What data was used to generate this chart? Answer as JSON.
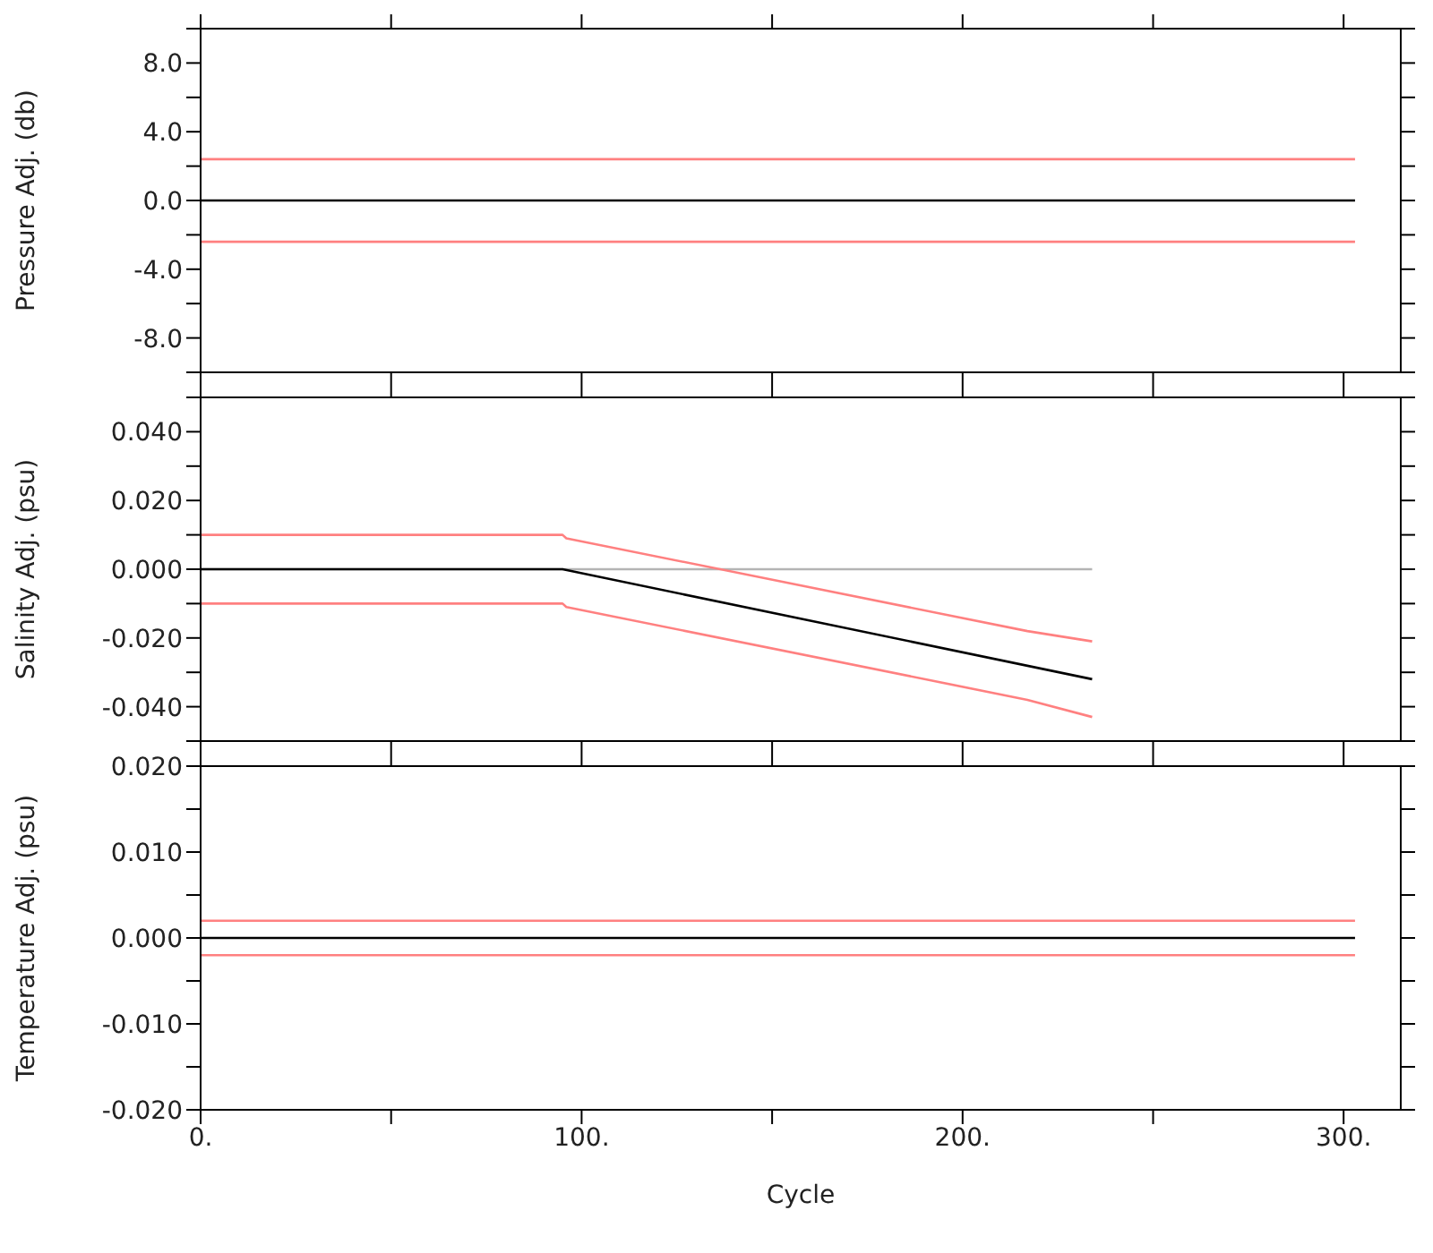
{
  "chart_data": [
    {
      "type": "line",
      "ylabel": "Pressure Adj. (db)",
      "xlim": [
        0,
        315
      ],
      "xticks": [
        0,
        {
          "value": 50,
          "label": null
        },
        {
          "value": 100,
          "label": null
        },
        {
          "value": 150,
          "label": null
        },
        {
          "value": 200,
          "label": null
        },
        {
          "value": 250,
          "label": null
        },
        {
          "value": 300,
          "label": null
        }
      ],
      "ylim": [
        -10,
        10
      ],
      "yticks": [
        {
          "value": -10,
          "label": null
        },
        {
          "value": -8,
          "label": "-8.0"
        },
        {
          "value": -6,
          "label": null
        },
        {
          "value": -4,
          "label": "-4.0"
        },
        {
          "value": -2,
          "label": null
        },
        {
          "value": 0,
          "label": "0.0"
        },
        {
          "value": 2,
          "label": null
        },
        {
          "value": 4,
          "label": "4.0"
        },
        {
          "value": 6,
          "label": null
        },
        {
          "value": 8,
          "label": "8.0"
        },
        {
          "value": 10,
          "label": null
        }
      ],
      "tick_labels": "y",
      "grid": false,
      "legend": false,
      "marker": "none",
      "series": [
        {
          "color": "#ff8080",
          "x": [
            0,
            303
          ],
          "values": [
            2.4,
            2.4
          ]
        },
        {
          "color": "#ff8080",
          "x": [
            0,
            303
          ],
          "values": [
            -2.4,
            -2.4
          ]
        },
        {
          "color": "#000000",
          "x": [
            0,
            303
          ],
          "values": [
            0,
            0
          ]
        }
      ]
    },
    {
      "type": "line",
      "ylabel": "Salinity Adj. (psu)",
      "xlim": [
        0,
        315
      ],
      "xticks": [
        0,
        {
          "value": 50,
          "label": null
        },
        {
          "value": 100,
          "label": null
        },
        {
          "value": 150,
          "label": null
        },
        {
          "value": 200,
          "label": null
        },
        {
          "value": 250,
          "label": null
        },
        {
          "value": 300,
          "label": null
        }
      ],
      "ylim": [
        -0.05,
        0.05
      ],
      "yticks": [
        {
          "value": -0.05,
          "label": null
        },
        {
          "value": -0.04,
          "label": "-0.040"
        },
        {
          "value": -0.03,
          "label": null
        },
        {
          "value": -0.02,
          "label": "-0.020"
        },
        {
          "value": -0.01,
          "label": null
        },
        {
          "value": 0,
          "label": "0.000"
        },
        {
          "value": 0.01,
          "label": null
        },
        {
          "value": 0.02,
          "label": "0.020"
        },
        {
          "value": 0.03,
          "label": null
        },
        {
          "value": 0.04,
          "label": "0.040"
        },
        {
          "value": 0.05,
          "label": null
        }
      ],
      "tick_labels": "y",
      "grid": false,
      "legend": false,
      "marker": "none",
      "series": [
        {
          "color": "#b4b4b4",
          "x": [
            0,
            234
          ],
          "values": [
            0,
            0
          ]
        },
        {
          "color": "#ff8080",
          "x": [
            0,
            95,
            96,
            217,
            234
          ],
          "values": [
            0.01,
            0.01,
            0.009,
            -0.018,
            -0.021
          ]
        },
        {
          "color": "#ff8080",
          "x": [
            0,
            95,
            96,
            217,
            234
          ],
          "values": [
            -0.01,
            -0.01,
            -0.011,
            -0.038,
            -0.043
          ]
        },
        {
          "color": "#000000",
          "x": [
            0,
            95,
            234
          ],
          "values": [
            0,
            0,
            -0.032
          ]
        }
      ]
    },
    {
      "type": "line",
      "ylabel": "Temperature Adj. (psu)",
      "xlabel": "Cycle",
      "xlim": [
        0,
        315
      ],
      "xticks": [
        {
          "value": 0,
          "label": "0."
        },
        {
          "value": 50,
          "label": null
        },
        {
          "value": 100,
          "label": "100."
        },
        {
          "value": 150,
          "label": null
        },
        {
          "value": 200,
          "label": "200."
        },
        {
          "value": 250,
          "label": null
        },
        {
          "value": 300,
          "label": "300."
        }
      ],
      "ylim": [
        -0.02,
        0.02
      ],
      "yticks": [
        {
          "value": -0.02,
          "label": "-0.020"
        },
        {
          "value": -0.015,
          "label": null
        },
        {
          "value": -0.01,
          "label": "-0.010"
        },
        {
          "value": -0.005,
          "label": null
        },
        {
          "value": 0,
          "label": "0.000"
        },
        {
          "value": 0.005,
          "label": null
        },
        {
          "value": 0.01,
          "label": "0.010"
        },
        {
          "value": 0.015,
          "label": null
        },
        {
          "value": 0.02,
          "label": "0.020"
        }
      ],
      "grid": false,
      "legend": false,
      "marker": "none",
      "series": [
        {
          "color": "#ff8080",
          "x": [
            0,
            303
          ],
          "values": [
            0.002,
            0.002
          ]
        },
        {
          "color": "#ff8080",
          "x": [
            0,
            303
          ],
          "values": [
            -0.002,
            -0.002
          ]
        },
        {
          "color": "#000000",
          "x": [
            0,
            303
          ],
          "values": [
            0,
            0
          ]
        }
      ]
    }
  ]
}
